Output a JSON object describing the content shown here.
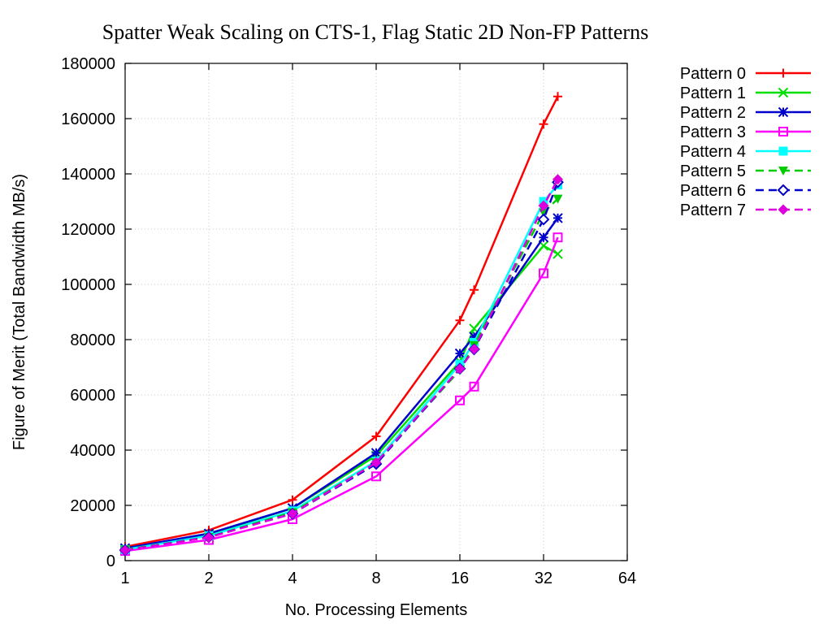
{
  "chart_data": {
    "type": "line",
    "title": "Spatter Weak Scaling on CTS-1, Flag Static 2D Non-FP Patterns",
    "xlabel": "No. Processing Elements",
    "ylabel": "Figure of Merit (Total Bandwidth MB/s)",
    "xscale": "log2",
    "xlim": [
      1,
      64
    ],
    "ylim": [
      0,
      180000
    ],
    "xticks": [
      1,
      2,
      4,
      8,
      16,
      32,
      64
    ],
    "xtick_labels": [
      "1",
      "2",
      "4",
      "8",
      "16",
      "32",
      "64"
    ],
    "yticks": [
      0,
      20000,
      40000,
      60000,
      80000,
      100000,
      120000,
      140000,
      160000,
      180000
    ],
    "ytick_labels": [
      "0",
      "20000",
      "40000",
      "60000",
      "80000",
      "100000",
      "120000",
      "140000",
      "160000",
      "180000"
    ],
    "grid": true,
    "legend_position": "outside-right",
    "x": [
      1,
      2,
      4,
      8,
      16,
      18,
      32,
      36
    ],
    "series": [
      {
        "name": "Pattern 0",
        "color": "#ff0000",
        "marker": "plus",
        "dash": "solid",
        "values": [
          5000,
          11000,
          22000,
          45000,
          87000,
          98000,
          158000,
          168000
        ]
      },
      {
        "name": "Pattern 1",
        "color": "#00e000",
        "marker": "cross",
        "dash": "solid",
        "values": [
          4200,
          9500,
          19000,
          38000,
          72000,
          84000,
          114000,
          111000
        ]
      },
      {
        "name": "Pattern 2",
        "color": "#0000cc",
        "marker": "star",
        "dash": "solid",
        "values": [
          4500,
          9800,
          19000,
          39000,
          75000,
          81000,
          117000,
          124000
        ]
      },
      {
        "name": "Pattern 3",
        "color": "#ff00ff",
        "marker": "square-open",
        "dash": "solid",
        "values": [
          3500,
          7500,
          15000,
          30500,
          58000,
          63000,
          104000,
          117000
        ]
      },
      {
        "name": "Pattern 4",
        "color": "#00ffff",
        "marker": "square-filled",
        "dash": "solid",
        "values": [
          4000,
          9000,
          18000,
          36000,
          71000,
          79000,
          130000,
          136000
        ]
      },
      {
        "name": "Pattern 5",
        "color": "#00cc00",
        "marker": "triangle-down",
        "dash": "dash",
        "values": [
          4000,
          8500,
          17500,
          35500,
          69000,
          78000,
          126000,
          131000
        ]
      },
      {
        "name": "Pattern 6",
        "color": "#0000cc",
        "marker": "diamond-open",
        "dash": "dash",
        "values": [
          3800,
          8500,
          17000,
          35000,
          69500,
          76500,
          123500,
          137000
        ]
      },
      {
        "name": "Pattern 7",
        "color": "#dd00dd",
        "marker": "diamond-filled",
        "dash": "dash",
        "values": [
          3800,
          8400,
          17000,
          35500,
          69500,
          76500,
          128500,
          138000
        ]
      }
    ]
  }
}
